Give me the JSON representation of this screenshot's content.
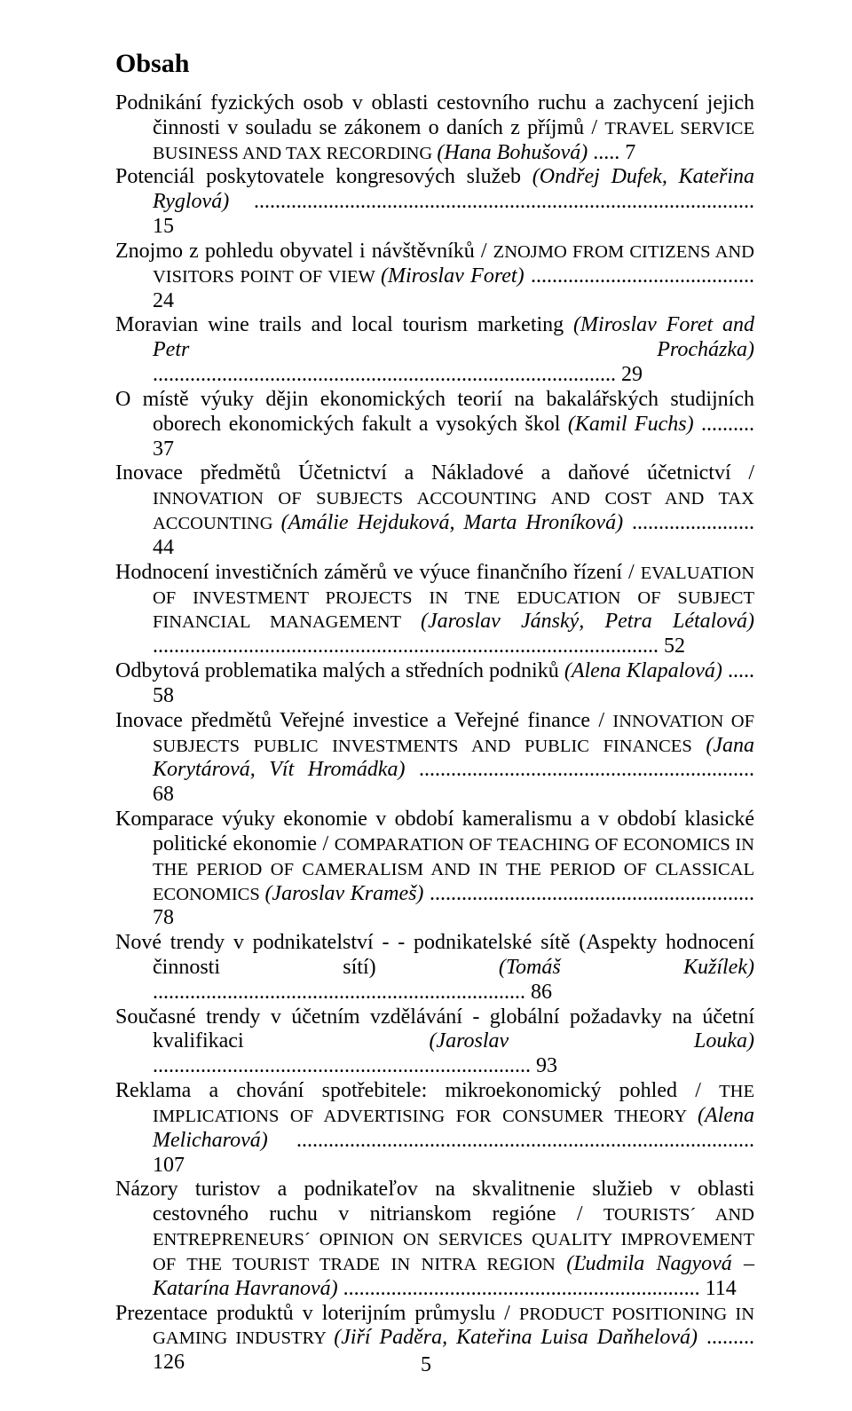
{
  "title": "Obsah",
  "pageNumber": "5",
  "entries": [
    {
      "parts": [
        {
          "t": "Podnikání fyzických osob v oblasti cestovního ruchu a zachycení jejich činnosti v souladu se zákonem  o daních z příjmů / "
        },
        {
          "t": "TRAVEL SERVICE BUSINESS AND TAX RECORDING ",
          "cls": "sub"
        },
        {
          "t": "(Hana Bohušová)",
          "cls": "it"
        },
        {
          "t": " ..... 7"
        }
      ]
    },
    {
      "parts": [
        {
          "t": "Potenciál poskytovatele kongresových služeb "
        },
        {
          "t": "(Ondřej Dufek, Kateřina Ryglová)",
          "cls": "it"
        },
        {
          "t": " .............................................................................................. 15"
        }
      ]
    },
    {
      "parts": [
        {
          "t": "Znojmo z pohledu obyvatel  i návštěvníků / "
        },
        {
          "t": "ZNOJMO FROM CITIZENS AND VISITORS POINT OF VIEW ",
          "cls": "sub"
        },
        {
          "t": "(Miroslav Foret)",
          "cls": "it"
        },
        {
          "t": " .......................................... 24"
        }
      ]
    },
    {
      "parts": [
        {
          "t": "Moravian wine trails and  local tourism marketing "
        },
        {
          "t": "(Miroslav Foret and Petr Procházka)",
          "cls": "it"
        },
        {
          "t": " ....................................................................................... 29"
        }
      ]
    },
    {
      "parts": [
        {
          "t": "O místě výuky dějin ekonomických teorií na bakalářských studijních oborech ekonomických fakult  a vysokých škol "
        },
        {
          "t": "(Kamil Fuchs)",
          "cls": "it"
        },
        {
          "t": " .......... 37"
        }
      ]
    },
    {
      "parts": [
        {
          "t": "Inovace  předmětů  Účetnictví  a Nákladové  a  daňové  účetnictví  / "
        },
        {
          "t": "INNOVATION OF SUBJECTS ACCOUNTING AND COST AND TAX ACCOUNTING ",
          "cls": "sub"
        },
        {
          "t": "(Amálie Hejduková, Marta Hroníková)",
          "cls": "it"
        },
        {
          "t": " ....................... 44"
        }
      ]
    },
    {
      "parts": [
        {
          "t": "Hodnocení  investičních  záměrů  ve  výuce  finančního  řízení  /  "
        },
        {
          "t": "EVALUATION OF INVESTMENT PROJECTS  IN TNE EDUCATION OF SUBJECT FINANCIAL MANAGEMENT ",
          "cls": "sub"
        },
        {
          "t": "(Jaroslav Jánský, Petra Létalová)",
          "cls": "it"
        },
        {
          "t": " ............................................................................................... 52"
        }
      ]
    },
    {
      "parts": [
        {
          "t": "Odbytová problematika malých  a středních podniků "
        },
        {
          "t": "(Alena Klapalová)",
          "cls": "it"
        },
        {
          "t": " ..... 58"
        }
      ]
    },
    {
      "parts": [
        {
          "t": "Inovace předmětů Veřejné investice  a Veřejné finance / "
        },
        {
          "t": "INNOVATION OF SUBJECTS PUBLIC INVESTMENTS AND PUBLIC FINANCES ",
          "cls": "sub"
        },
        {
          "t": "(Jana Korytárová, Vít Hromádka)",
          "cls": "it"
        },
        {
          "t": " ............................................................... 68"
        }
      ]
    },
    {
      "parts": [
        {
          "t": "Komparace výuky ekonomie v období kameralismu a v období klasické politické ekonomie / "
        },
        {
          "t": "COMPARATION OF TEACHING OF ECONOMICS IN THE PERIOD OF  CAMERALISM  AND IN THE PERIOD OF  CLASSICAL ECONOMICS ",
          "cls": "sub"
        },
        {
          "t": "(Jaroslav Krameš)",
          "cls": "it"
        },
        {
          "t": "  ............................................................. 78"
        }
      ]
    },
    {
      "parts": [
        {
          "t": "Nové trendy v podnikatelství -  - podnikatelské sítě (Aspekty hodnocení činnosti sítí) "
        },
        {
          "t": "(Tomáš Kužílek)",
          "cls": "it"
        },
        {
          "t": " ...................................................................... 86"
        }
      ]
    },
    {
      "parts": [
        {
          "t": "Současné trendy v účetním vzdělávání - globální požadavky na účetní kvalifikaci "
        },
        {
          "t": "(Jaroslav Louka)",
          "cls": "it"
        },
        {
          "t": "  ....................................................................... 93"
        }
      ]
    },
    {
      "parts": [
        {
          "t": "Reklama  a  chování  spotřebitele:  mikroekonomický  pohled  /  "
        },
        {
          "t": "THE IMPLICATIONS OF ADVERTISING FOR CONSUMER THEORY ",
          "cls": "sub"
        },
        {
          "t": "(Alena Melicharová)",
          "cls": "it"
        },
        {
          "t": " ...................................................................................... 107"
        }
      ]
    },
    {
      "parts": [
        {
          "t": "Názory  turistov  a  podnikateľov  na  skvalitnenie  služieb  v oblasti cestovného  ruchu   v nitrianskom  regióne  /  "
        },
        {
          "t": "TOURISTS´ AND ENTREPRENEURS´ OPINION ON SERVICES QUALITY IMPROVEMENT OF THE TOURIST TRADE IN NITRA REGION ",
          "cls": "sub"
        },
        {
          "t": "(Ľudmila Nagyová – Katarína Havranová)",
          "cls": "it"
        },
        {
          "t": "  ................................................................... 114"
        }
      ]
    },
    {
      "parts": [
        {
          "t": "Prezentace produktů v loterijním průmyslu / "
        },
        {
          "t": "PRODUCT POSITIONING IN GAMING INDUSTRY ",
          "cls": "sub"
        },
        {
          "t": "(Jiří Paděra, Kateřina Luisa Daňhelová)",
          "cls": "it"
        },
        {
          "t": "  ......... 126"
        }
      ]
    }
  ]
}
